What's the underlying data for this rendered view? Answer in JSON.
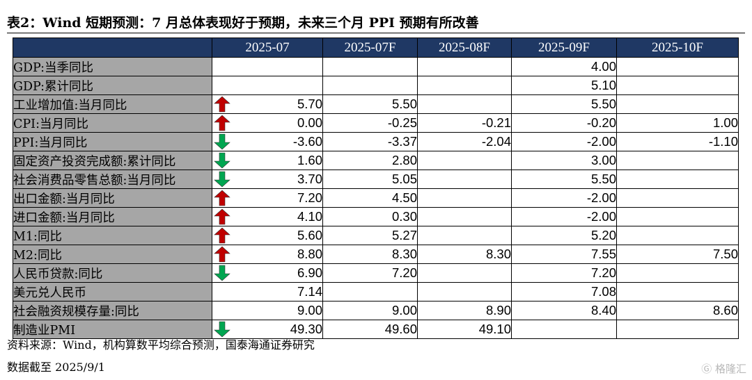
{
  "title": "表2：Wind 短期预测：7 月总体表现好于预期，未来三个月 PPI 预期有所改善",
  "columns": [
    "2025-07",
    "2025-07F",
    "2025-08F",
    "2025-09F",
    "2025-10F"
  ],
  "colors": {
    "header_bg": "#1f3864",
    "label_bg": "#a6a6a6",
    "arrow_up": "#c00000",
    "arrow_down": "#00a651"
  },
  "rows": [
    {
      "label": "GDP:当季同比",
      "arrow": "",
      "values": [
        "",
        "",
        "",
        "4.00",
        ""
      ]
    },
    {
      "label": "GDP:累计同比",
      "arrow": "",
      "values": [
        "",
        "",
        "",
        "5.10",
        ""
      ]
    },
    {
      "label": "工业增加值:当月同比",
      "arrow": "up-arrow-icon",
      "values": [
        "5.70",
        "5.50",
        "",
        "5.50",
        ""
      ]
    },
    {
      "label": "CPI:当月同比",
      "arrow": "up-arrow-icon",
      "values": [
        "0.00",
        "-0.25",
        "-0.21",
        "-0.20",
        "1.00"
      ]
    },
    {
      "label": "PPI:当月同比",
      "arrow": "down-arrow-icon",
      "values": [
        "-3.60",
        "-3.37",
        "-2.04",
        "-2.00",
        "-1.10"
      ]
    },
    {
      "label": "固定资产投资完成额:累计同比",
      "arrow": "down-arrow-icon",
      "values": [
        "1.60",
        "2.80",
        "",
        "3.00",
        ""
      ]
    },
    {
      "label": "社会消费品零售总额:当月同比",
      "arrow": "down-arrow-icon",
      "values": [
        "3.70",
        "5.05",
        "",
        "5.50",
        ""
      ]
    },
    {
      "label": "出口金额:当月同比",
      "arrow": "up-arrow-icon",
      "values": [
        "7.20",
        "4.50",
        "",
        "-2.00",
        ""
      ]
    },
    {
      "label": "进口金额:当月同比",
      "arrow": "up-arrow-icon",
      "values": [
        "4.10",
        "0.30",
        "",
        "-2.00",
        ""
      ]
    },
    {
      "label": "M1:同比",
      "arrow": "up-arrow-icon",
      "values": [
        "5.60",
        "5.27",
        "",
        "5.20",
        ""
      ]
    },
    {
      "label": "M2:同比",
      "arrow": "up-arrow-icon",
      "values": [
        "8.80",
        "8.30",
        "8.30",
        "7.55",
        "7.50"
      ]
    },
    {
      "label": "人民币贷款:同比",
      "arrow": "down-arrow-icon",
      "values": [
        "6.90",
        "7.20",
        "",
        "7.20",
        ""
      ]
    },
    {
      "label": "美元兑人民币",
      "arrow": "",
      "values": [
        "7.14",
        "",
        "",
        "7.08",
        ""
      ]
    },
    {
      "label": "社会融资规模存量:同比",
      "arrow": "",
      "values": [
        "9.00",
        "9.00",
        "8.90",
        "8.40",
        "8.60"
      ]
    },
    {
      "label": "制造业PMI",
      "arrow": "down-arrow-icon",
      "values": [
        "49.30",
        "49.60",
        "49.10",
        "",
        ""
      ]
    }
  ],
  "source": "资料来源：Wind，机构算数平均综合预测，国泰海通证券研究",
  "data_cutoff": "数据截至 2025/9/1",
  "watermark": "格隆汇"
}
